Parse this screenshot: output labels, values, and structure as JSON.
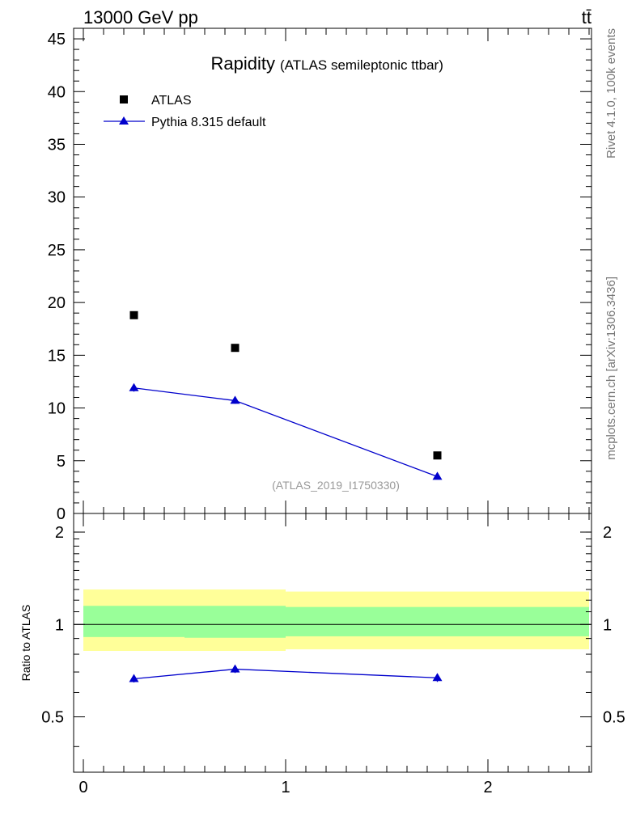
{
  "header": {
    "energy_label": "13000 GeV pp",
    "process_label": "tt̄"
  },
  "side_text": {
    "rivet_version": "Rivet 4.1.0,  100k events",
    "source": "mcplots.cern.ch [arXiv:1306.3436]"
  },
  "chart_data": [
    {
      "type": "scatter",
      "panel": "main",
      "title": "Rapidity",
      "subtitle": "(ATLAS semileptonic ttbar)",
      "analysis_label": "(ATLAS_2019_I1750330)",
      "xlim": [
        0,
        2.5
      ],
      "ylim": [
        0,
        46
      ],
      "xticks": [
        0,
        1,
        2
      ],
      "yticks": [
        0,
        5,
        10,
        15,
        20,
        25,
        30,
        35,
        40,
        45
      ],
      "ytick_labels": [
        "0",
        "5",
        "10",
        "15",
        "20",
        "25",
        "30",
        "35",
        "40",
        "45"
      ],
      "legend_position": "top-left",
      "series": [
        {
          "name": "ATLAS",
          "marker": "square",
          "color": "#000000",
          "x": [
            0.25,
            0.75,
            1.75
          ],
          "y": [
            18.8,
            15.7,
            5.5
          ]
        },
        {
          "name": "Pythia 8.315 default",
          "marker": "triangle",
          "line": true,
          "color": "#0000cc",
          "x": [
            0.25,
            0.75,
            1.75
          ],
          "y": [
            11.9,
            10.7,
            3.5
          ],
          "yerr": [
            0.35,
            0.3,
            0.15
          ]
        }
      ]
    },
    {
      "type": "line",
      "panel": "ratio",
      "ylabel": "Ratio to ATLAS",
      "xlim": [
        0,
        2.5
      ],
      "ylim": [
        0.33,
        2.3
      ],
      "xticks": [
        0,
        1,
        2
      ],
      "xtick_labels": [
        "0",
        "1",
        "2"
      ],
      "yticks": [
        0.5,
        1,
        2
      ],
      "ytick_labels": [
        "0.5",
        "1",
        "2"
      ],
      "bands": [
        {
          "name": "total uncertainty",
          "color": "#ffff99",
          "bins": [
            {
              "x0": 0,
              "x1": 0.5,
              "lo": 0.82,
              "hi": 1.3
            },
            {
              "x0": 0.5,
              "x1": 1.0,
              "lo": 0.82,
              "hi": 1.3
            },
            {
              "x0": 1.0,
              "x1": 2.5,
              "lo": 0.83,
              "hi": 1.28
            }
          ]
        },
        {
          "name": "stat uncertainty",
          "color": "#99ff99",
          "bins": [
            {
              "x0": 0,
              "x1": 0.5,
              "lo": 0.91,
              "hi": 1.15
            },
            {
              "x0": 0.5,
              "x1": 1.0,
              "lo": 0.905,
              "hi": 1.15
            },
            {
              "x0": 1.0,
              "x1": 2.5,
              "lo": 0.915,
              "hi": 1.14
            }
          ]
        }
      ],
      "series": [
        {
          "name": "Pythia 8.315 default",
          "marker": "triangle",
          "color": "#0000cc",
          "x": [
            0.25,
            0.75,
            1.75
          ],
          "y": [
            0.665,
            0.715,
            0.67
          ],
          "yerr": [
            0.018,
            0.02,
            0.02
          ]
        }
      ]
    }
  ]
}
